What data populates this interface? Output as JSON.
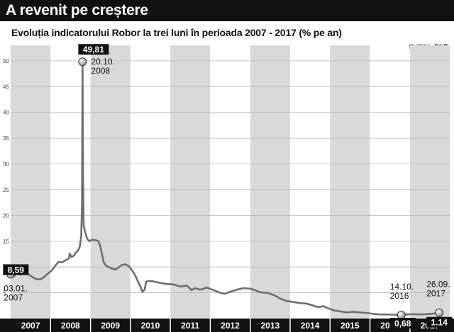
{
  "header": {
    "title": "A revenit pe creștere",
    "subtitle": "Evoluția indicatorului Robor la trei luni în perioada 2007 - 2017 (% pe an)",
    "source_label": "SURSA:",
    "source_name": "BNR"
  },
  "chart_data": {
    "type": "line",
    "title": "Evoluția indicatorului Robor la trei luni în perioada 2007 - 2017 (% pe an)",
    "xlabel": "",
    "ylabel": "",
    "x_range": [
      "2007-01-01",
      "2017-12-31"
    ],
    "ylim": [
      0,
      53
    ],
    "y_ticks": [
      5,
      10,
      15,
      20,
      25,
      30,
      35,
      40,
      45,
      50
    ],
    "grid": true,
    "year_bands": [
      "2007",
      "2008",
      "2009",
      "2010",
      "2011",
      "2012",
      "2013",
      "2014",
      "2015",
      "2016",
      "2017"
    ],
    "series": [
      {
        "color": "#6e6e6e",
        "points": [
          [
            "2007-01-03",
            8.59
          ],
          [
            "2007-02-01",
            8.2
          ],
          [
            "2007-03-01",
            8.9
          ],
          [
            "2007-04-01",
            8.5
          ],
          [
            "2007-05-01",
            9.2
          ],
          [
            "2007-06-01",
            8.8
          ],
          [
            "2007-07-01",
            8.3
          ],
          [
            "2007-08-01",
            7.9
          ],
          [
            "2007-09-01",
            7.6
          ],
          [
            "2007-10-01",
            7.6
          ],
          [
            "2007-11-01",
            8.0
          ],
          [
            "2007-12-01",
            8.6
          ],
          [
            "2008-01-15",
            9.4
          ],
          [
            "2008-02-15",
            10.3
          ],
          [
            "2008-03-15",
            11.0
          ],
          [
            "2008-04-15",
            10.9
          ],
          [
            "2008-05-15",
            11.3
          ],
          [
            "2008-06-15",
            11.6
          ],
          [
            "2008-06-25",
            12.6
          ],
          [
            "2008-07-10",
            11.9
          ],
          [
            "2008-08-01",
            12.2
          ],
          [
            "2008-08-20",
            12.8
          ],
          [
            "2008-09-10",
            13.2
          ],
          [
            "2008-09-25",
            14.0
          ],
          [
            "2008-10-08",
            16.0
          ],
          [
            "2008-10-15",
            22.0
          ],
          [
            "2008-10-20",
            49.81
          ],
          [
            "2008-10-24",
            28.0
          ],
          [
            "2008-10-30",
            18.0
          ],
          [
            "2008-11-15",
            16.6
          ],
          [
            "2008-12-01",
            15.5
          ],
          [
            "2008-12-20",
            15.0
          ],
          [
            "2009-01-15",
            15.3
          ],
          [
            "2009-02-15",
            15.2
          ],
          [
            "2009-03-15",
            15.0
          ],
          [
            "2009-04-01",
            14.0
          ],
          [
            "2009-04-15",
            12.5
          ],
          [
            "2009-05-01",
            11.0
          ],
          [
            "2009-05-20",
            10.3
          ],
          [
            "2009-06-15",
            10.0
          ],
          [
            "2009-07-15",
            9.7
          ],
          [
            "2009-08-15",
            9.5
          ],
          [
            "2009-09-15",
            9.9
          ],
          [
            "2009-10-15",
            10.4
          ],
          [
            "2009-11-15",
            10.5
          ],
          [
            "2009-12-15",
            10.2
          ],
          [
            "2010-01-15",
            9.4
          ],
          [
            "2010-02-15",
            8.3
          ],
          [
            "2010-03-15",
            7.0
          ],
          [
            "2010-04-01",
            6.2
          ],
          [
            "2010-04-20",
            5.2
          ],
          [
            "2010-05-10",
            5.6
          ],
          [
            "2010-05-25",
            7.1
          ],
          [
            "2010-06-15",
            7.3
          ],
          [
            "2010-08-01",
            7.2
          ],
          [
            "2010-10-01",
            6.9
          ],
          [
            "2010-12-01",
            6.7
          ],
          [
            "2011-02-01",
            6.6
          ],
          [
            "2011-04-01",
            6.2
          ],
          [
            "2011-06-01",
            6.4
          ],
          [
            "2011-07-15",
            5.5
          ],
          [
            "2011-08-15",
            5.9
          ],
          [
            "2011-10-01",
            5.6
          ],
          [
            "2011-12-01",
            6.0
          ],
          [
            "2012-02-01",
            5.5
          ],
          [
            "2012-04-01",
            5.0
          ],
          [
            "2012-05-15",
            4.8
          ],
          [
            "2012-07-01",
            5.2
          ],
          [
            "2012-09-01",
            5.6
          ],
          [
            "2012-11-01",
            5.9
          ],
          [
            "2013-01-01",
            5.8
          ],
          [
            "2013-02-15",
            5.5
          ],
          [
            "2013-04-01",
            5.1
          ],
          [
            "2013-06-01",
            5.0
          ],
          [
            "2013-08-01",
            4.6
          ],
          [
            "2013-10-01",
            3.9
          ],
          [
            "2013-12-01",
            3.4
          ],
          [
            "2014-02-01",
            3.2
          ],
          [
            "2014-04-01",
            3.0
          ],
          [
            "2014-06-01",
            2.9
          ],
          [
            "2014-08-01",
            2.5
          ],
          [
            "2014-09-15",
            2.2
          ],
          [
            "2014-11-01",
            2.4
          ],
          [
            "2014-12-15",
            2.0
          ],
          [
            "2015-02-01",
            1.6
          ],
          [
            "2015-04-01",
            1.4
          ],
          [
            "2015-06-01",
            1.2
          ],
          [
            "2015-08-01",
            1.3
          ],
          [
            "2015-10-01",
            1.2
          ],
          [
            "2015-12-01",
            1.1
          ],
          [
            "2016-02-01",
            0.9
          ],
          [
            "2016-04-01",
            0.8
          ],
          [
            "2016-06-01",
            0.8
          ],
          [
            "2016-08-01",
            0.75
          ],
          [
            "2016-10-14",
            0.68
          ],
          [
            "2016-12-01",
            0.8
          ],
          [
            "2017-02-01",
            0.85
          ],
          [
            "2017-04-01",
            0.8
          ],
          [
            "2017-06-01",
            0.85
          ],
          [
            "2017-08-01",
            0.95
          ],
          [
            "2017-09-26",
            1.14
          ]
        ]
      }
    ],
    "annotations": [
      {
        "date": "2007-01-03",
        "value": 8.59,
        "value_label": "8,59",
        "date_label": [
          "03.01.",
          "2007"
        ]
      },
      {
        "date": "2008-10-20",
        "value": 49.81,
        "value_label": "49,81",
        "date_label": [
          "20.10.",
          "2008"
        ]
      },
      {
        "date": "2016-10-14",
        "value": 0.68,
        "value_label": "0,68",
        "date_label": [
          "14.10.",
          "2016"
        ]
      },
      {
        "date": "2017-09-26",
        "value": 1.14,
        "value_label": "1.14",
        "date_label": [
          "26.09.",
          "2017"
        ]
      }
    ]
  }
}
